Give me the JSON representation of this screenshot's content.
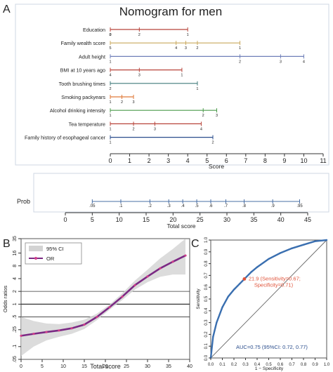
{
  "panels": {
    "a": "A",
    "b": "B",
    "c": "C"
  },
  "chart_data": [
    {
      "type": "nomogram",
      "title": "Nomogram for men",
      "axis": {
        "label": "Score",
        "min": 0,
        "max": 11,
        "ticks": [
          0,
          1,
          2,
          3,
          4,
          5,
          6,
          7,
          8,
          9,
          10,
          11
        ]
      },
      "variables": [
        {
          "name": "Education",
          "color": "#b8443a",
          "range": [
            0,
            4.0
          ],
          "ticks": [
            {
              "s": 0,
              "l": "0"
            },
            {
              "s": 0,
              "l": "2"
            },
            {
              "s": 1.5,
              "l": "2"
            },
            {
              "s": 4.0,
              "l": "1"
            }
          ]
        },
        {
          "name": "Family wealth score",
          "color": "#c9a85c",
          "range": [
            0,
            6.7
          ],
          "ticks": [
            {
              "s": 0,
              "l": "5"
            },
            {
              "s": 3.4,
              "l": "4"
            },
            {
              "s": 3.9,
              "l": "3"
            },
            {
              "s": 4.5,
              "l": "2"
            },
            {
              "s": 6.7,
              "l": "1"
            }
          ]
        },
        {
          "name": "Adult height",
          "color": "#6f7fb8",
          "range": [
            0,
            10.0
          ],
          "ticks": [
            {
              "s": 0,
              "l": "1"
            },
            {
              "s": 6.7,
              "l": "2"
            },
            {
              "s": 8.8,
              "l": "3"
            },
            {
              "s": 10.0,
              "l": "4"
            }
          ]
        },
        {
          "name": "BMI at 10 years ago",
          "color": "#b8443a",
          "range": [
            0,
            3.7
          ],
          "ticks": [
            {
              "s": 0,
              "l": "4"
            },
            {
              "s": 1.5,
              "l": "3"
            },
            {
              "s": 3.7,
              "l": "1"
            }
          ]
        },
        {
          "name": "Tooth brushing times",
          "color": "#3f7a7a",
          "range": [
            0,
            4.5
          ],
          "ticks": [
            {
              "s": 0,
              "l": "2"
            },
            {
              "s": 4.5,
              "l": "1"
            }
          ]
        },
        {
          "name": "Smoking packyears",
          "color": "#e07a3a",
          "range": [
            0,
            1.2
          ],
          "ticks": [
            {
              "s": 0,
              "l": "1"
            },
            {
              "s": 0.6,
              "l": "2"
            },
            {
              "s": 1.2,
              "l": "3"
            }
          ]
        },
        {
          "name": "Alcohol drinking intensity",
          "color": "#4a9a4a",
          "range": [
            0,
            5.5
          ],
          "ticks": [
            {
              "s": 0,
              "l": "1"
            },
            {
              "s": 4.8,
              "l": "2"
            },
            {
              "s": 5.5,
              "l": "3"
            }
          ]
        },
        {
          "name": "Tea temperature",
          "color": "#b8443a",
          "range": [
            0,
            4.7
          ],
          "ticks": [
            {
              "s": 0,
              "l": "1"
            },
            {
              "s": 1.2,
              "l": "2"
            },
            {
              "s": 2.3,
              "l": "3"
            },
            {
              "s": 4.7,
              "l": "4"
            }
          ]
        },
        {
          "name": "Family history of esophageal cancer",
          "color": "#2a4d8c",
          "range": [
            0,
            5.3
          ],
          "ticks": [
            {
              "s": 0,
              "l": "1"
            },
            {
              "s": 5.3,
              "l": "2"
            }
          ]
        }
      ]
    },
    {
      "type": "nomogram-axis",
      "axis_label": "Total score",
      "prob_label": "Prob",
      "score_ticks": [
        0,
        5,
        10,
        15,
        20,
        25,
        30,
        35,
        40,
        45
      ],
      "score_range": [
        0,
        45
      ],
      "prob_ticks": [
        {
          "s": 5.0,
          "l": ".05"
        },
        {
          "s": 10.3,
          "l": ".1"
        },
        {
          "s": 15.7,
          "l": ".2"
        },
        {
          "s": 19.2,
          "l": ".3"
        },
        {
          "s": 21.8,
          "l": ".4"
        },
        {
          "s": 24.4,
          "l": ".5"
        },
        {
          "s": 27.0,
          "l": ".6"
        },
        {
          "s": 29.8,
          "l": ".7"
        },
        {
          "s": 33.2,
          "l": ".8"
        },
        {
          "s": 38.5,
          "l": ".9"
        },
        {
          "s": 43.5,
          "l": ".95"
        }
      ]
    },
    {
      "type": "line",
      "xlabel": "Total score",
      "ylabel": "Odds ratios",
      "xlim": [
        0,
        40
      ],
      "x_ticks": [
        0,
        5,
        10,
        15,
        20,
        25,
        30,
        35,
        40
      ],
      "y_scale": "log",
      "y_ticks": [
        0.05,
        0.1,
        0.25,
        0.5,
        1,
        2,
        4,
        8,
        16,
        35
      ],
      "y_tick_labels": [
        ".05",
        ".1",
        ".25",
        ".5",
        "1",
        "2",
        "4",
        "8",
        "16",
        "35"
      ],
      "hlines": [
        1,
        0.5,
        2
      ],
      "legend": {
        "position": "top-left",
        "entries": [
          "95% CI",
          "OR"
        ]
      },
      "series": [
        {
          "name": "OR",
          "color": "#7b2a84",
          "x": [
            0,
            3,
            6,
            9,
            12,
            15,
            18,
            21,
            24,
            27,
            30,
            33,
            36,
            39
          ],
          "y": [
            0.18,
            0.2,
            0.22,
            0.24,
            0.27,
            0.33,
            0.5,
            0.85,
            1.5,
            2.8,
            4.5,
            7,
            10,
            14
          ]
        },
        {
          "name": "95% CI",
          "color": "#d3d3d3",
          "x": [
            0,
            3,
            6,
            9,
            12,
            15,
            18,
            21,
            24,
            27,
            30,
            33,
            36,
            39
          ],
          "lower": [
            0.06,
            0.1,
            0.14,
            0.17,
            0.2,
            0.26,
            0.42,
            0.74,
            1.25,
            2.2,
            3.3,
            4.4,
            5,
            5
          ],
          "upper": [
            0.5,
            0.4,
            0.35,
            0.34,
            0.37,
            0.43,
            0.6,
            0.98,
            1.8,
            3.6,
            6.5,
            12,
            20,
            35
          ]
        }
      ]
    },
    {
      "type": "line",
      "xlabel": "1 − Specificity",
      "ylabel": "Sensitivity",
      "xlim": [
        0,
        1
      ],
      "ylim": [
        0,
        1
      ],
      "ticks": [
        0.0,
        0.1,
        0.2,
        0.3,
        0.4,
        0.5,
        0.6,
        0.7,
        0.8,
        0.9,
        1.0
      ],
      "tick_labels": [
        "0.0",
        "0.1",
        "0.2",
        "0.3",
        "0.4",
        "0.5",
        "0.6",
        "0.7",
        "0.8",
        "0.9",
        "1.0"
      ],
      "series": [
        {
          "name": "ROC",
          "color": "#3a6fb0",
          "x": [
            0,
            0.02,
            0.05,
            0.1,
            0.15,
            0.2,
            0.25,
            0.29,
            0.35,
            0.4,
            0.5,
            0.6,
            0.7,
            0.8,
            0.9,
            1.0
          ],
          "y": [
            0,
            0.18,
            0.3,
            0.43,
            0.52,
            0.58,
            0.63,
            0.67,
            0.73,
            0.77,
            0.84,
            0.89,
            0.93,
            0.96,
            0.99,
            1.0
          ]
        }
      ],
      "cutoff": {
        "x": 0.29,
        "y": 0.67,
        "label_line1": "21.9 (Sensitivity=0.67;",
        "label_line2": "Specificity=0.71)"
      },
      "auc_label": "AUC=0.75 (95%CI: 0.72, 0.77)",
      "diagonal": true
    }
  ]
}
